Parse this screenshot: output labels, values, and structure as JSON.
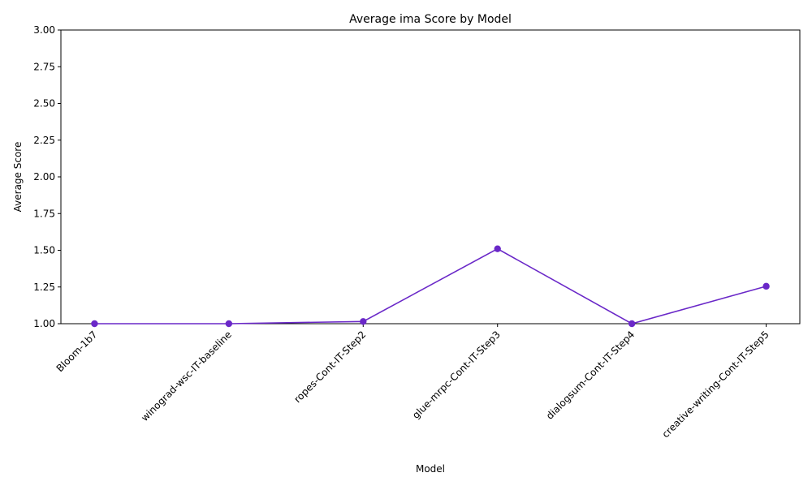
{
  "chart_data": {
    "type": "line",
    "title": "Average ima Score by Model",
    "xlabel": "Model",
    "ylabel": "Average Score",
    "categories": [
      "Bloom-1b7",
      "winograd-wsc-IT-baseline",
      "ropes-Cont-IT-Step2",
      "glue-mrpc-Cont-IT-Step3",
      "dialogsum-Cont-IT-Step4",
      "creative-writing-Cont-IT-Step5"
    ],
    "series": [
      {
        "values": [
          1.0,
          1.0,
          1.015,
          1.51,
          1.0,
          1.255
        ],
        "color": "#6a28c8"
      }
    ],
    "ylim": [
      1.0,
      3.0
    ],
    "yticks": [
      "1.00",
      "1.25",
      "1.50",
      "1.75",
      "2.00",
      "2.25",
      "2.50",
      "2.75",
      "3.00"
    ],
    "grid": false,
    "markers": true
  }
}
